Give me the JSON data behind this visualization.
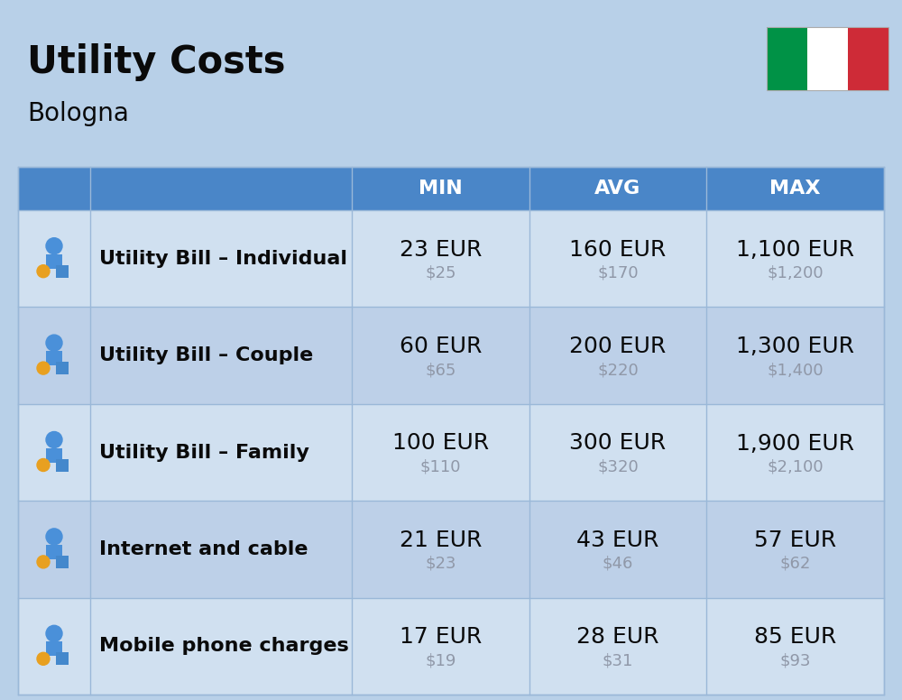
{
  "title": "Utility Costs",
  "subtitle": "Bologna",
  "background_color": "#b8d0e8",
  "header_bg_color": "#4a86c8",
  "header_text_color": "#ffffff",
  "row_bg_colors": [
    "#d0e0f0",
    "#bdd0e8"
  ],
  "divider_color": "#9ab8d8",
  "title_color": "#0a0a0a",
  "subtitle_color": "#0a0a0a",
  "label_color": "#0a0a0a",
  "eur_color": "#0a0a0a",
  "usd_color": "#9098a8",
  "columns": [
    "MIN",
    "AVG",
    "MAX"
  ],
  "rows": [
    {
      "label": "Utility Bill – Individual",
      "min_eur": "23 EUR",
      "min_usd": "$25",
      "avg_eur": "160 EUR",
      "avg_usd": "$170",
      "max_eur": "1,100 EUR",
      "max_usd": "$1,200"
    },
    {
      "label": "Utility Bill – Couple",
      "min_eur": "60 EUR",
      "min_usd": "$65",
      "avg_eur": "200 EUR",
      "avg_usd": "$220",
      "max_eur": "1,300 EUR",
      "max_usd": "$1,400"
    },
    {
      "label": "Utility Bill – Family",
      "min_eur": "100 EUR",
      "min_usd": "$110",
      "avg_eur": "300 EUR",
      "avg_usd": "$320",
      "max_eur": "1,900 EUR",
      "max_usd": "$2,100"
    },
    {
      "label": "Internet and cable",
      "min_eur": "21 EUR",
      "min_usd": "$23",
      "avg_eur": "43 EUR",
      "avg_usd": "$46",
      "max_eur": "57 EUR",
      "max_usd": "$62"
    },
    {
      "label": "Mobile phone charges",
      "min_eur": "17 EUR",
      "min_usd": "$19",
      "avg_eur": "28 EUR",
      "avg_usd": "$31",
      "max_eur": "85 EUR",
      "max_usd": "$93"
    }
  ],
  "flag_colors": [
    "#009246",
    "#ffffff",
    "#ce2b37"
  ],
  "title_fontsize": 30,
  "subtitle_fontsize": 20,
  "header_fontsize": 16,
  "label_fontsize": 16,
  "eur_fontsize": 18,
  "usd_fontsize": 13
}
